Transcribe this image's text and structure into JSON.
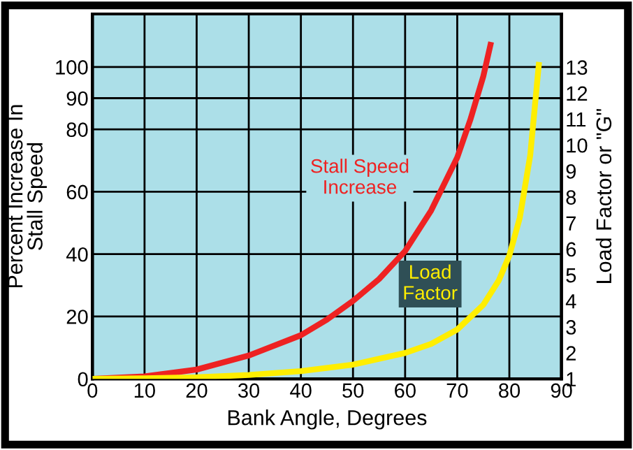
{
  "chart_data": {
    "type": "line",
    "xlabel": "Bank Angle, Degrees",
    "ylabel": "Percent Increase In\nStall Speed",
    "y2label": "Load Factor or \"G\"",
    "xlim": [
      0,
      90
    ],
    "xticks": [
      0,
      10,
      20,
      30,
      40,
      50,
      60,
      70,
      80,
      90
    ],
    "ylim": [
      0,
      117
    ],
    "yticks": [
      0,
      20,
      40,
      60,
      80,
      90,
      100
    ],
    "y2lim": [
      1,
      15.05
    ],
    "y2ticks": [
      1,
      2,
      3,
      4,
      5,
      6,
      7,
      8,
      9,
      10,
      11,
      12,
      13
    ],
    "grid": true,
    "line_style": "solid",
    "series": [
      {
        "name": "Stall Speed\nIncrease",
        "color": "#ee2222",
        "x": [
          0,
          10,
          20,
          30,
          40,
          45,
          50,
          55,
          60,
          65,
          70,
          72.5,
          75,
          76.5
        ],
        "values": [
          0,
          0.8,
          3,
          7.5,
          14,
          19,
          25,
          32,
          41,
          54,
          71,
          83,
          97,
          108
        ]
      },
      {
        "name": "Load\nFactor",
        "color": "#ffee00",
        "axis": "y2",
        "x": [
          0,
          10,
          20,
          30,
          40,
          50,
          60,
          65,
          70,
          75,
          78,
          80,
          82,
          84,
          85.7
        ],
        "values": [
          1,
          1.02,
          1.06,
          1.15,
          1.3,
          1.55,
          2,
          2.35,
          2.9,
          3.85,
          4.8,
          5.75,
          7.2,
          9.6,
          13.2
        ]
      }
    ]
  }
}
